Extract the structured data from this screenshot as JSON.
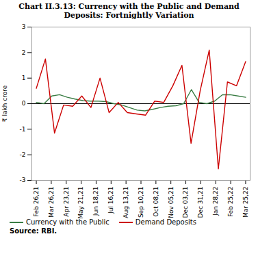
{
  "chart_data": {
    "type": "line",
    "title": "Chart II.3.13: Currency with the Public and Demand\nDeposits: Fortnightly Variation",
    "y_label": "₹ lakh crore",
    "annotations": [
      "Source: RBI."
    ],
    "xlim": [
      -0.3,
      14.3
    ],
    "xticks": [
      {
        "value": 0,
        "label": "Feb 26,21"
      },
      {
        "value": 1,
        "label": "Mar 26,21"
      },
      {
        "value": 2,
        "label": "Apr 23,21"
      },
      {
        "value": 3,
        "label": "May 21,21"
      },
      {
        "value": 4,
        "label": "Jun 18,21"
      },
      {
        "value": 5,
        "label": "Jul 16,21"
      },
      {
        "value": 6,
        "label": "Aug 13,21"
      },
      {
        "value": 7,
        "label": "Sep 10,21"
      },
      {
        "value": 8,
        "label": "Oct 08,21"
      },
      {
        "value": 9,
        "label": "Nov 05,21"
      },
      {
        "value": 10,
        "label": "Dec 03,21"
      },
      {
        "value": 11,
        "label": "Dec 31,21"
      },
      {
        "value": 12,
        "label": "Jan 28,22"
      },
      {
        "value": 13,
        "label": "Feb 25,22"
      },
      {
        "value": 14,
        "label": "Mar 25,22"
      }
    ],
    "ylim": [
      -3,
      3
    ],
    "yticks": [
      -3,
      -2,
      -1,
      0,
      1,
      2,
      3
    ],
    "grid": false,
    "legend": "bottom",
    "series": [
      {
        "name": "Currency with the Public",
        "color": "#3a7d44",
        "x": [
          0,
          0.5185185185,
          1.037037037,
          1.5555555556,
          2.0740740741,
          2.5925925926,
          3.1111111111,
          3.6296296296,
          4.1481481481,
          4.6666666667,
          5.1851851852,
          5.7037037037,
          6.2222222222,
          6.7407407407,
          7.2592592593,
          7.7777777778,
          8.2962962963,
          8.8148148148,
          9.3333333333,
          9.8518518519,
          10.3703703704,
          10.8888888889,
          11.4074074074,
          11.9259259259,
          12.4444444444,
          12.962962963,
          13.4814814815,
          14
        ],
        "values": [
          0.05,
          0.0,
          0.3,
          0.35,
          0.25,
          0.18,
          0.12,
          0.1,
          0.1,
          0.08,
          0.0,
          -0.05,
          -0.15,
          -0.25,
          -0.28,
          -0.22,
          -0.15,
          -0.1,
          -0.08,
          0.0,
          0.55,
          0.05,
          0.0,
          0.1,
          0.35,
          0.35,
          0.3,
          0.25
        ]
      },
      {
        "name": "Demand Deposits",
        "color": "#cc0000",
        "x": [
          0,
          0.6086956522,
          1.2173913043,
          1.8260869565,
          2.4347826087,
          3.0434782609,
          3.652173913,
          4.2608695652,
          4.8695652174,
          5.4782608696,
          6.0869565217,
          6.6956521739,
          7.3043478261,
          7.9130434783,
          8.5217391304,
          9.1304347826,
          9.7391304348,
          10.347826087,
          10.9565217391,
          11.5652173913,
          12.1739130435,
          12.7826086957,
          13.3913043478,
          14
        ],
        "values": [
          0.6,
          1.75,
          -1.15,
          -0.05,
          -0.1,
          0.3,
          -0.15,
          1.0,
          -0.35,
          0.05,
          -0.35,
          -0.4,
          -0.45,
          0.1,
          0.05,
          0.7,
          1.5,
          -1.55,
          0.5,
          2.1,
          -2.55,
          0.85,
          0.7,
          1.65
        ]
      }
    ]
  }
}
